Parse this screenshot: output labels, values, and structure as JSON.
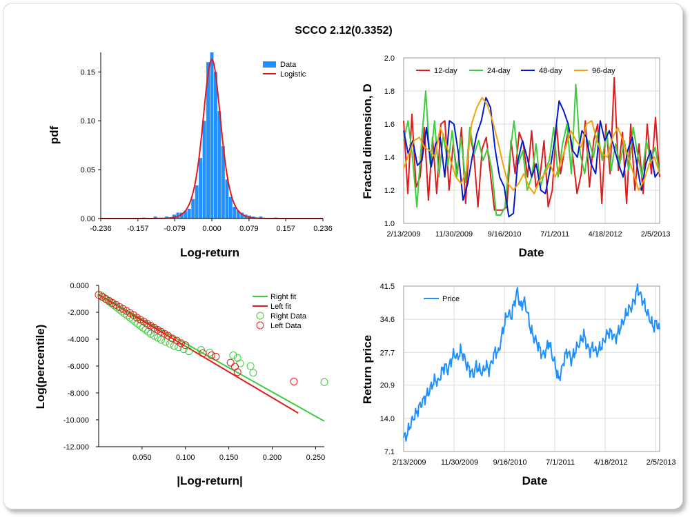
{
  "title": "SCCO 2.12(0.3352)",
  "colors": {
    "bar": "#1e90ff",
    "red": "#e31a1c",
    "green": "#3dcc3d",
    "blue": "#0019cc",
    "orange": "#f0a30a",
    "price": "#1e90ff",
    "grid": "#d9d9d9"
  },
  "chart_data": [
    {
      "type": "bar",
      "xlabel": "Log-return",
      "ylabel": "pdf",
      "xlim": [
        -0.236,
        0.236
      ],
      "ylim": [
        0,
        0.17
      ],
      "xticks": [
        "-0.236",
        "-0.157",
        "-0.079",
        "0.000",
        "0.079",
        "0.157",
        "0.236"
      ],
      "yticks": [
        "0.00",
        "0.05",
        "0.10",
        "0.15"
      ],
      "legend": [
        "Data",
        "Logistic"
      ],
      "legend_position": "top-right",
      "bins": [
        -0.144,
        -0.12,
        -0.096,
        -0.08,
        -0.072,
        -0.064,
        -0.056,
        -0.048,
        -0.04,
        -0.032,
        -0.024,
        -0.016,
        -0.008,
        0.0,
        0.008,
        0.016,
        0.024,
        0.032,
        0.04,
        0.048,
        0.056,
        0.064,
        0.072,
        0.08,
        0.088,
        0.104,
        0.136
      ],
      "values": [
        0.001,
        0.002,
        0.002,
        0.004,
        0.006,
        0.006,
        0.008,
        0.01,
        0.02,
        0.034,
        0.062,
        0.1,
        0.16,
        0.17,
        0.15,
        0.11,
        0.074,
        0.04,
        0.022,
        0.012,
        0.008,
        0.006,
        0.004,
        0.003,
        0.002,
        0.002,
        0.001
      ],
      "fit": {
        "name": "Logistic",
        "peak": 0.163,
        "scale": 0.0128
      }
    },
    {
      "type": "line",
      "xlabel": "Date",
      "ylabel": "Fractal dimension, D",
      "xticks": [
        "2/13/2009",
        "11/30/2009",
        "9/16/2010",
        "7/1/2011",
        "4/18/2012",
        "2/5/2013"
      ],
      "ylim": [
        1.0,
        2.0
      ],
      "yticks": [
        "1.0",
        "1.2",
        "1.4",
        "1.6",
        "1.8",
        "2.0"
      ],
      "legend_position": "top",
      "series": [
        {
          "name": "12-day",
          "color_key": "red",
          "values": [
            1.62,
            1.18,
            1.66,
            1.22,
            1.28,
            1.58,
            1.14,
            1.52,
            1.18,
            1.6,
            1.62,
            1.2,
            1.48,
            1.3,
            1.58,
            1.12,
            1.55,
            1.42,
            1.1,
            1.45,
            1.52,
            1.3,
            1.08,
            1.08,
            1.08,
            1.1,
            1.5,
            1.3,
            1.55,
            1.48,
            1.28,
            1.56,
            1.22,
            1.28,
            1.5,
            1.1,
            1.2,
            1.6,
            1.3,
            1.45,
            1.58,
            1.4,
            1.18,
            1.3,
            1.62,
            1.22,
            1.5,
            1.6,
            1.12,
            1.6,
            1.3,
            1.88,
            1.32,
            1.55,
            1.12,
            1.6,
            1.2,
            1.48,
            1.18,
            1.6,
            1.3,
            1.64,
            1.28
          ]
        },
        {
          "name": "24-day",
          "color_key": "green",
          "values": [
            1.5,
            1.62,
            1.4,
            1.1,
            1.48,
            1.8,
            1.36,
            1.62,
            1.28,
            1.54,
            1.35,
            1.56,
            1.28,
            1.52,
            1.25,
            1.58,
            1.42,
            1.5,
            1.38,
            1.45,
            1.32,
            1.05,
            1.05,
            1.1,
            1.4,
            1.62,
            1.36,
            1.44,
            1.2,
            1.28,
            1.48,
            1.22,
            1.32,
            1.38,
            1.58,
            1.28,
            1.48,
            1.6,
            1.3,
            1.84,
            1.42,
            1.3,
            1.5,
            1.4,
            1.55,
            1.38,
            1.56,
            1.32,
            1.48,
            1.36,
            1.5,
            1.32,
            1.58,
            1.42,
            1.28,
            1.5,
            1.38,
            1.46,
            1.3
          ]
        },
        {
          "name": "48-day",
          "color_key": "blue",
          "values": [
            1.56,
            1.42,
            1.5,
            1.35,
            1.38,
            1.58,
            1.34,
            1.48,
            1.52,
            1.28,
            1.62,
            1.6,
            1.42,
            1.14,
            1.24,
            1.4,
            1.54,
            1.62,
            1.76,
            1.7,
            1.45,
            1.28,
            1.22,
            1.04,
            1.06,
            1.38,
            1.5,
            1.4,
            1.28,
            1.36,
            1.2,
            1.18,
            1.32,
            1.5,
            1.74,
            1.68,
            1.6,
            1.44,
            1.4,
            1.56,
            1.52,
            1.36,
            1.3,
            1.62,
            1.5,
            1.56,
            1.46,
            1.36,
            1.28,
            1.44,
            1.52,
            1.36,
            1.2,
            1.36,
            1.44,
            1.28,
            1.32
          ]
        },
        {
          "name": "96-day",
          "color_key": "orange",
          "values": [
            1.33,
            1.42,
            1.5,
            1.52,
            1.46,
            1.44,
            1.4,
            1.58,
            1.5,
            1.38,
            1.28,
            1.24,
            1.32,
            1.6,
            1.7,
            1.76,
            1.72,
            1.62,
            1.5,
            1.36,
            1.24,
            1.2,
            1.24,
            1.3,
            1.22,
            1.18,
            1.26,
            1.3,
            1.36,
            1.28,
            1.36,
            1.46,
            1.56,
            1.5,
            1.46,
            1.6,
            1.62,
            1.5,
            1.42,
            1.4,
            1.52,
            1.58,
            1.5,
            1.4,
            1.3,
            1.2,
            1.26,
            1.36,
            1.4,
            1.3
          ]
        }
      ]
    },
    {
      "type": "scatter",
      "xlabel": "|Log-return|",
      "ylabel": "Log(percentile)",
      "xlim": [
        0,
        0.26
      ],
      "ylim": [
        -12,
        0
      ],
      "xticks": [
        "0.050",
        "0.100",
        "0.150",
        "0.200",
        "0.250"
      ],
      "yticks": [
        "0.000",
        "-2.000",
        "-4.000",
        "-6.000",
        "-8.000",
        "-10.000",
        "-12.000"
      ],
      "legend_position": "top-right",
      "series": [
        {
          "name": "Right fit",
          "kind": "line",
          "color_key": "green",
          "x": [
            0.0,
            0.26
          ],
          "y": [
            -0.7,
            -10.1
          ]
        },
        {
          "name": "Left fit",
          "kind": "line",
          "color_key": "red",
          "x": [
            0.0,
            0.23
          ],
          "y": [
            -0.7,
            -9.5
          ]
        },
        {
          "name": "Right Data",
          "kind": "points",
          "color_key": "green",
          "x": [
            0.003,
            0.006,
            0.009,
            0.012,
            0.015,
            0.018,
            0.021,
            0.024,
            0.027,
            0.03,
            0.033,
            0.036,
            0.039,
            0.042,
            0.045,
            0.048,
            0.051,
            0.054,
            0.057,
            0.06,
            0.064,
            0.068,
            0.072,
            0.077,
            0.082,
            0.087,
            0.092,
            0.098,
            0.104,
            0.118,
            0.128,
            0.155,
            0.16,
            0.163,
            0.175,
            0.178,
            0.26
          ],
          "y": [
            -0.75,
            -0.9,
            -1.05,
            -1.2,
            -1.35,
            -1.5,
            -1.65,
            -1.8,
            -1.95,
            -2.1,
            -2.25,
            -2.4,
            -2.55,
            -2.7,
            -2.85,
            -3.0,
            -3.15,
            -3.3,
            -3.45,
            -3.6,
            -3.75,
            -3.9,
            -4.05,
            -4.2,
            -4.35,
            -4.5,
            -4.6,
            -4.75,
            -4.9,
            -4.8,
            -5.0,
            -5.2,
            -5.4,
            -5.8,
            -6.0,
            -6.5,
            -7.2
          ]
        },
        {
          "name": "Left Data",
          "kind": "points",
          "color_key": "red",
          "x": [
            0.0,
            0.004,
            0.008,
            0.012,
            0.016,
            0.02,
            0.024,
            0.028,
            0.032,
            0.036,
            0.04,
            0.044,
            0.048,
            0.052,
            0.056,
            0.06,
            0.064,
            0.068,
            0.072,
            0.076,
            0.08,
            0.085,
            0.09,
            0.095,
            0.1,
            0.12,
            0.13,
            0.135,
            0.152,
            0.157,
            0.16,
            0.225
          ],
          "y": [
            -0.7,
            -0.85,
            -1.0,
            -1.15,
            -1.3,
            -1.45,
            -1.6,
            -1.75,
            -1.9,
            -2.05,
            -2.2,
            -2.4,
            -2.55,
            -2.7,
            -2.85,
            -3.0,
            -3.15,
            -3.3,
            -3.45,
            -3.6,
            -3.75,
            -3.95,
            -4.1,
            -4.3,
            -4.45,
            -5.05,
            -5.2,
            -5.3,
            -5.75,
            -6.05,
            -6.45,
            -7.15
          ]
        }
      ]
    },
    {
      "type": "line",
      "xlabel": "Date",
      "ylabel": "Return price",
      "xticks": [
        "2/13/2009",
        "11/30/2009",
        "9/16/2010",
        "7/1/2011",
        "4/18/2012",
        "2/5/2013"
      ],
      "ylim": [
        7.1,
        41.5
      ],
      "yticks": [
        "7.1",
        "14.0",
        "20.9",
        "27.7",
        "34.6",
        "41.5"
      ],
      "legend_position": "top-left",
      "series": [
        {
          "name": "Price",
          "color_key": "price",
          "values": [
            10.0,
            10.5,
            12.5,
            14.0,
            15.0,
            16.5,
            17.5,
            18.5,
            19.5,
            21.0,
            22.0,
            21.5,
            23.5,
            25.0,
            24.0,
            26.0,
            27.5,
            26.5,
            28.0,
            27.0,
            25.0,
            24.0,
            23.0,
            25.0,
            24.0,
            23.5,
            25.0,
            24.0,
            26.0,
            28.0,
            27.5,
            31.0,
            34.0,
            36.0,
            35.0,
            38.0,
            40.5,
            37.0,
            38.5,
            36.5,
            33.0,
            31.0,
            30.0,
            28.5,
            27.0,
            28.0,
            30.0,
            27.0,
            25.0,
            22.0,
            24.0,
            27.0,
            28.0,
            26.0,
            27.5,
            29.0,
            30.0,
            31.5,
            29.0,
            28.0,
            29.0,
            27.5,
            28.5,
            29.5,
            31.0,
            32.0,
            31.5,
            30.5,
            32.0,
            33.5,
            35.0,
            36.5,
            37.0,
            38.5,
            41.0,
            39.5,
            38.0,
            36.0,
            34.5,
            33.0,
            34.0,
            32.5
          ]
        }
      ]
    }
  ]
}
